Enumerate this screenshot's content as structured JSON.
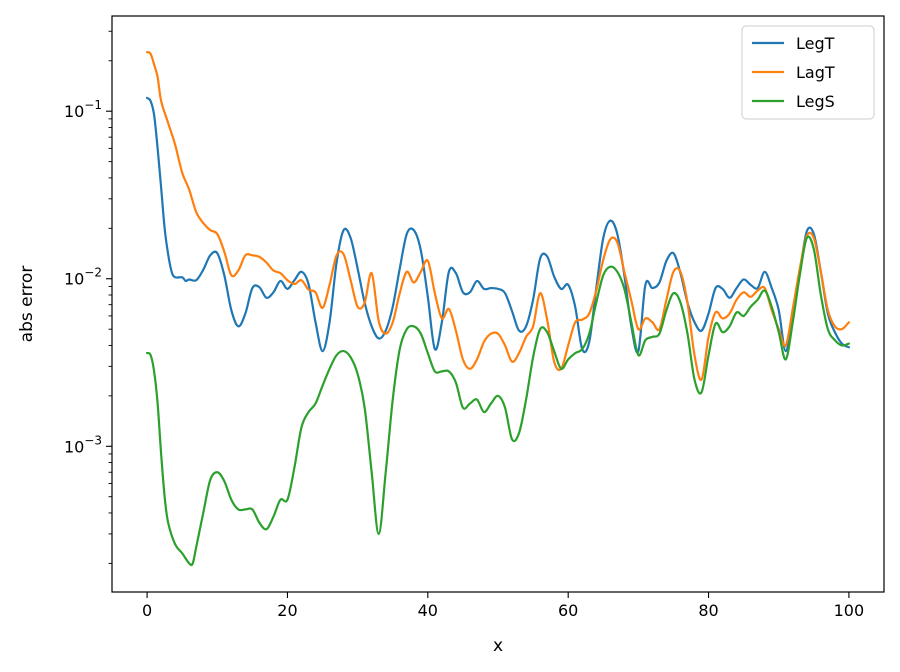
{
  "chart_data": {
    "type": "line",
    "title": "",
    "xlabel": "x",
    "ylabel": "abs error",
    "xlim": [
      -5,
      105
    ],
    "ylim": [
      0.000135,
      0.37
    ],
    "yscale": "log",
    "grid": false,
    "legend_position": "top-right",
    "x_ticks": [
      0,
      20,
      40,
      60,
      80,
      100
    ],
    "x_tick_labels": [
      "0",
      "20",
      "40",
      "60",
      "80",
      "100"
    ],
    "y_ticks": [
      {
        "value": 0.1,
        "base": "10",
        "exp": "−1"
      },
      {
        "value": 0.01,
        "base": "10",
        "exp": "−2"
      },
      {
        "value": 0.001,
        "base": "10",
        "exp": "−3"
      }
    ],
    "series": [
      {
        "name": "LegT",
        "color": "#1f77b4",
        "points": [
          [
            0,
            0.12
          ],
          [
            0.5,
            0.115
          ],
          [
            1,
            0.095
          ],
          [
            1.5,
            0.06
          ],
          [
            2,
            0.035
          ],
          [
            2.5,
            0.02
          ],
          [
            3,
            0.014
          ],
          [
            3.5,
            0.011
          ],
          [
            4,
            0.0102
          ],
          [
            5,
            0.0102
          ],
          [
            5.5,
            0.0097
          ],
          [
            6,
            0.0099
          ],
          [
            7,
            0.0098
          ],
          [
            8,
            0.0113
          ],
          [
            9,
            0.0138
          ],
          [
            10,
            0.0142
          ],
          [
            11,
            0.0105
          ],
          [
            12,
            0.0065
          ],
          [
            13,
            0.0052
          ],
          [
            14,
            0.0062
          ],
          [
            15,
            0.0088
          ],
          [
            16,
            0.0089
          ],
          [
            17,
            0.0077
          ],
          [
            18,
            0.0083
          ],
          [
            19,
            0.0097
          ],
          [
            20,
            0.0087
          ],
          [
            21,
            0.0098
          ],
          [
            22,
            0.011
          ],
          [
            23,
            0.0093
          ],
          [
            24,
            0.0055
          ],
          [
            25,
            0.0037
          ],
          [
            26,
            0.0055
          ],
          [
            27,
            0.0125
          ],
          [
            28,
            0.0195
          ],
          [
            29,
            0.0175
          ],
          [
            30,
            0.0115
          ],
          [
            31,
            0.0072
          ],
          [
            32,
            0.0052
          ],
          [
            33,
            0.0044
          ],
          [
            34,
            0.0049
          ],
          [
            35,
            0.0068
          ],
          [
            36,
            0.0115
          ],
          [
            37,
            0.0185
          ],
          [
            38,
            0.0195
          ],
          [
            39,
            0.0148
          ],
          [
            40,
            0.0078
          ],
          [
            41,
            0.0038
          ],
          [
            42,
            0.0055
          ],
          [
            43,
            0.011
          ],
          [
            44,
            0.0108
          ],
          [
            45,
            0.0083
          ],
          [
            46,
            0.0083
          ],
          [
            47,
            0.0097
          ],
          [
            48,
            0.0087
          ],
          [
            49,
            0.0088
          ],
          [
            50,
            0.0087
          ],
          [
            51,
            0.0082
          ],
          [
            52,
            0.0064
          ],
          [
            53,
            0.0049
          ],
          [
            54,
            0.0052
          ],
          [
            55,
            0.0075
          ],
          [
            56,
            0.0132
          ],
          [
            57,
            0.0136
          ],
          [
            58,
            0.0103
          ],
          [
            59,
            0.0087
          ],
          [
            60,
            0.0092
          ],
          [
            61,
            0.0068
          ],
          [
            62,
            0.0038
          ],
          [
            63,
            0.0042
          ],
          [
            64,
            0.0088
          ],
          [
            65,
            0.0175
          ],
          [
            66,
            0.0222
          ],
          [
            67,
            0.0185
          ],
          [
            68,
            0.0105
          ],
          [
            69,
            0.0052
          ],
          [
            70,
            0.0037
          ],
          [
            71,
            0.0092
          ],
          [
            72,
            0.0088
          ],
          [
            73,
            0.0095
          ],
          [
            74,
            0.0128
          ],
          [
            75,
            0.0142
          ],
          [
            76,
            0.0108
          ],
          [
            77,
            0.0072
          ],
          [
            78,
            0.0055
          ],
          [
            79,
            0.0049
          ],
          [
            80,
            0.0062
          ],
          [
            81,
            0.0088
          ],
          [
            82,
            0.0087
          ],
          [
            83,
            0.0077
          ],
          [
            84,
            0.0088
          ],
          [
            85,
            0.0099
          ],
          [
            86,
            0.0092
          ],
          [
            87,
            0.0088
          ],
          [
            88,
            0.011
          ],
          [
            89,
            0.0088
          ],
          [
            90,
            0.0065
          ],
          [
            91,
            0.0037
          ],
          [
            92,
            0.0065
          ],
          [
            93,
            0.011
          ],
          [
            94,
            0.0192
          ],
          [
            95,
            0.0185
          ],
          [
            96,
            0.011
          ],
          [
            97,
            0.0062
          ],
          [
            98,
            0.0048
          ],
          [
            99,
            0.0041
          ],
          [
            100,
            0.0039
          ]
        ]
      },
      {
        "name": "LagT",
        "color": "#ff7f0e",
        "points": [
          [
            0,
            0.225
          ],
          [
            0.5,
            0.22
          ],
          [
            1,
            0.19
          ],
          [
            1.5,
            0.16
          ],
          [
            2,
            0.115
          ],
          [
            3,
            0.085
          ],
          [
            4,
            0.063
          ],
          [
            5,
            0.043
          ],
          [
            6,
            0.034
          ],
          [
            7,
            0.025
          ],
          [
            8,
            0.0215
          ],
          [
            9,
            0.0195
          ],
          [
            10,
            0.0185
          ],
          [
            11,
            0.0145
          ],
          [
            12,
            0.0105
          ],
          [
            13,
            0.0112
          ],
          [
            14,
            0.0138
          ],
          [
            15,
            0.0138
          ],
          [
            16,
            0.0135
          ],
          [
            17,
            0.0125
          ],
          [
            18,
            0.0112
          ],
          [
            19,
            0.0108
          ],
          [
            20,
            0.0098
          ],
          [
            21,
            0.0093
          ],
          [
            22,
            0.0098
          ],
          [
            23,
            0.0086
          ],
          [
            24,
            0.0083
          ],
          [
            25,
            0.0067
          ],
          [
            26,
            0.0092
          ],
          [
            27,
            0.0138
          ],
          [
            28,
            0.014
          ],
          [
            29,
            0.0098
          ],
          [
            30,
            0.0068
          ],
          [
            31,
            0.0072
          ],
          [
            32,
            0.0108
          ],
          [
            33,
            0.0056
          ],
          [
            34,
            0.0047
          ],
          [
            35,
            0.0055
          ],
          [
            36,
            0.0082
          ],
          [
            37,
            0.011
          ],
          [
            38,
            0.0095
          ],
          [
            39,
            0.011
          ],
          [
            40,
            0.0128
          ],
          [
            41,
            0.0082
          ],
          [
            42,
            0.0058
          ],
          [
            43,
            0.0066
          ],
          [
            44,
            0.0049
          ],
          [
            45,
            0.0033
          ],
          [
            46,
            0.0029
          ],
          [
            47,
            0.0033
          ],
          [
            48,
            0.0042
          ],
          [
            49,
            0.0047
          ],
          [
            50,
            0.0047
          ],
          [
            51,
            0.004
          ],
          [
            52,
            0.0032
          ],
          [
            53,
            0.0036
          ],
          [
            54,
            0.0045
          ],
          [
            55,
            0.0052
          ],
          [
            56,
            0.0082
          ],
          [
            57,
            0.0057
          ],
          [
            58,
            0.0032
          ],
          [
            59,
            0.0029
          ],
          [
            60,
            0.004
          ],
          [
            61,
            0.0055
          ],
          [
            62,
            0.0057
          ],
          [
            63,
            0.0062
          ],
          [
            64,
            0.0085
          ],
          [
            65,
            0.013
          ],
          [
            66,
            0.0172
          ],
          [
            67,
            0.0165
          ],
          [
            68,
            0.011
          ],
          [
            69,
            0.0074
          ],
          [
            70,
            0.005
          ],
          [
            71,
            0.0058
          ],
          [
            72,
            0.0055
          ],
          [
            73,
            0.005
          ],
          [
            74,
            0.0075
          ],
          [
            75,
            0.011
          ],
          [
            76,
            0.011
          ],
          [
            77,
            0.0072
          ],
          [
            78,
            0.0035
          ],
          [
            79,
            0.0025
          ],
          [
            80,
            0.0045
          ],
          [
            81,
            0.0063
          ],
          [
            82,
            0.0058
          ],
          [
            83,
            0.0062
          ],
          [
            84,
            0.0075
          ],
          [
            85,
            0.0083
          ],
          [
            86,
            0.0078
          ],
          [
            87,
            0.0085
          ],
          [
            88,
            0.0088
          ],
          [
            89,
            0.0065
          ],
          [
            90,
            0.005
          ],
          [
            91,
            0.004
          ],
          [
            92,
            0.0066
          ],
          [
            93,
            0.0115
          ],
          [
            94,
            0.018
          ],
          [
            95,
            0.0175
          ],
          [
            96,
            0.011
          ],
          [
            97,
            0.0065
          ],
          [
            98,
            0.0052
          ],
          [
            99,
            0.005
          ],
          [
            100,
            0.0055
          ]
        ]
      },
      {
        "name": "LegS",
        "color": "#2ca02c",
        "points": [
          [
            0,
            0.0036
          ],
          [
            0.5,
            0.0035
          ],
          [
            1,
            0.0028
          ],
          [
            1.5,
            0.0018
          ],
          [
            2,
            0.0009
          ],
          [
            2.5,
            0.0005
          ],
          [
            3,
            0.00035
          ],
          [
            4,
            0.00026
          ],
          [
            5,
            0.00023
          ],
          [
            6,
            0.0002
          ],
          [
            6.5,
            0.0002
          ],
          [
            7,
            0.00025
          ],
          [
            8,
            0.0004
          ],
          [
            9,
            0.00063
          ],
          [
            10,
            0.0007
          ],
          [
            11,
            0.00062
          ],
          [
            12,
            0.00048
          ],
          [
            13,
            0.00042
          ],
          [
            14,
            0.00042
          ],
          [
            15,
            0.00042
          ],
          [
            16,
            0.00035
          ],
          [
            17,
            0.00032
          ],
          [
            18,
            0.00038
          ],
          [
            19,
            0.00048
          ],
          [
            20,
            0.00048
          ],
          [
            21,
            0.00075
          ],
          [
            22,
            0.0013
          ],
          [
            23,
            0.0016
          ],
          [
            24,
            0.0018
          ],
          [
            25,
            0.0023
          ],
          [
            26,
            0.0029
          ],
          [
            27,
            0.0035
          ],
          [
            28,
            0.0037
          ],
          [
            29,
            0.0034
          ],
          [
            30,
            0.0027
          ],
          [
            31,
            0.0017
          ],
          [
            32,
            0.0007
          ],
          [
            33,
            0.0003
          ],
          [
            34,
            0.0007
          ],
          [
            35,
            0.0019
          ],
          [
            36,
            0.0038
          ],
          [
            37,
            0.005
          ],
          [
            38,
            0.0052
          ],
          [
            39,
            0.0047
          ],
          [
            40,
            0.0036
          ],
          [
            41,
            0.0028
          ],
          [
            42,
            0.0028
          ],
          [
            43,
            0.0028
          ],
          [
            44,
            0.0024
          ],
          [
            45,
            0.0017
          ],
          [
            46,
            0.0018
          ],
          [
            47,
            0.0019
          ],
          [
            48,
            0.0016
          ],
          [
            49,
            0.0018
          ],
          [
            50,
            0.002
          ],
          [
            51,
            0.0017
          ],
          [
            52,
            0.0011
          ],
          [
            53,
            0.0012
          ],
          [
            54,
            0.0019
          ],
          [
            55,
            0.0034
          ],
          [
            56,
            0.005
          ],
          [
            57,
            0.0048
          ],
          [
            58,
            0.0037
          ],
          [
            59,
            0.0029
          ],
          [
            60,
            0.0033
          ],
          [
            61,
            0.0036
          ],
          [
            62,
            0.0038
          ],
          [
            63,
            0.0047
          ],
          [
            64,
            0.0072
          ],
          [
            65,
            0.0105
          ],
          [
            66,
            0.0118
          ],
          [
            67,
            0.011
          ],
          [
            68,
            0.0087
          ],
          [
            69,
            0.0055
          ],
          [
            70,
            0.0035
          ],
          [
            71,
            0.0043
          ],
          [
            72,
            0.0045
          ],
          [
            73,
            0.0047
          ],
          [
            74,
            0.0065
          ],
          [
            75,
            0.0082
          ],
          [
            76,
            0.0072
          ],
          [
            77,
            0.0047
          ],
          [
            78,
            0.0025
          ],
          [
            79,
            0.0021
          ],
          [
            80,
            0.0035
          ],
          [
            81,
            0.0054
          ],
          [
            82,
            0.0048
          ],
          [
            83,
            0.0052
          ],
          [
            84,
            0.0063
          ],
          [
            85,
            0.006
          ],
          [
            86,
            0.0068
          ],
          [
            87,
            0.0075
          ],
          [
            88,
            0.0085
          ],
          [
            89,
            0.0068
          ],
          [
            90,
            0.0048
          ],
          [
            91,
            0.0033
          ],
          [
            92,
            0.0055
          ],
          [
            93,
            0.0105
          ],
          [
            94,
            0.0175
          ],
          [
            95,
            0.015
          ],
          [
            96,
            0.008
          ],
          [
            97,
            0.005
          ],
          [
            98,
            0.0043
          ],
          [
            99,
            0.004
          ],
          [
            100,
            0.0041
          ]
        ]
      }
    ]
  }
}
